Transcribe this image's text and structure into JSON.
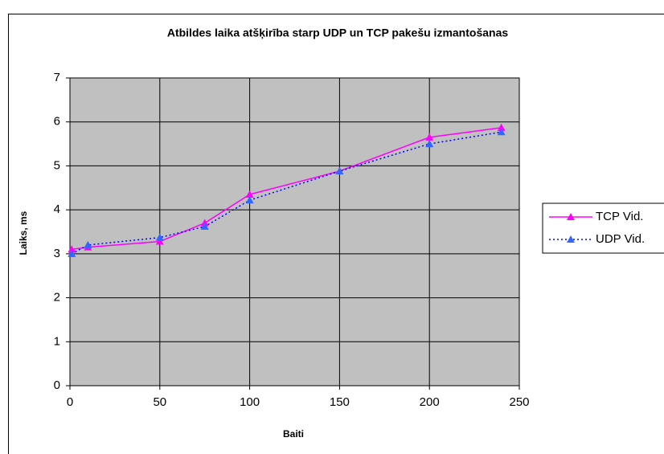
{
  "chart_data": {
    "type": "line",
    "title": "Atbildes laika atšķirība starp UDP un TCP pakešu izmantošanas",
    "x_label": "Baiti",
    "y_label": "Laiks, ms",
    "x": [
      1,
      10,
      50,
      75,
      100,
      150,
      200,
      240
    ],
    "series": [
      {
        "name": "TCP Vid.",
        "color": "#ff00ff",
        "marker_color": "#ff00ff",
        "dash": false,
        "values": [
          3.1,
          3.15,
          3.28,
          3.7,
          4.35,
          4.88,
          5.65,
          5.87
        ]
      },
      {
        "name": "UDP Vid.",
        "color": "#0000ff",
        "marker_color": "#3366ff",
        "dash": true,
        "values": [
          3.0,
          3.2,
          3.37,
          3.62,
          4.22,
          4.88,
          5.5,
          5.77
        ]
      }
    ],
    "xlim": [
      0,
      250
    ],
    "xticks": [
      0,
      50,
      100,
      150,
      200,
      250
    ],
    "ylim": [
      0,
      7
    ],
    "yticks": [
      0,
      1,
      2,
      3,
      4,
      5,
      6,
      7
    ],
    "grid": true,
    "plot_background": "#c0c0c0",
    "legend": "right"
  }
}
